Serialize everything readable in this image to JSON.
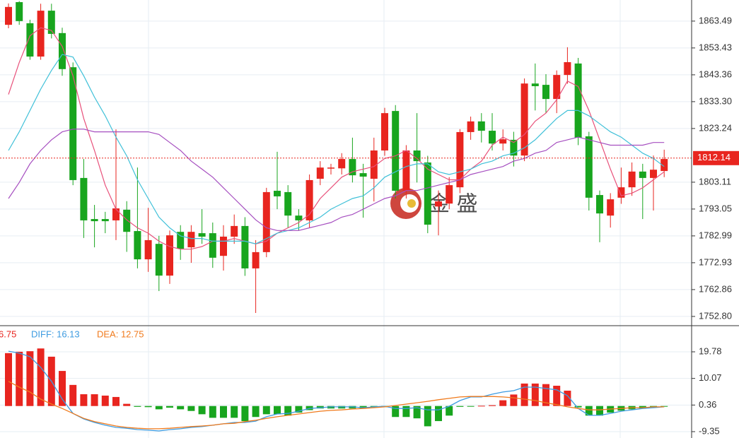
{
  "watermark": "金 盛",
  "chart_data": [
    {
      "type": "candlestick",
      "up_color": "#e8251f",
      "down_color": "#18a51e",
      "open": [
        1862.1,
        1870.6,
        1862.7,
        1850.2,
        1867.4,
        1859,
        1846.2,
        1804.7,
        1789.3,
        1789.3,
        1788.8,
        1792.8,
        1784.8,
        1774.2,
        1780,
        1768.1,
        1784.5,
        1778.7,
        1784,
        1784,
        1775.5,
        1782.7,
        1786.7,
        1770.8,
        1776.9,
        1799.9,
        1799.4,
        1790.6,
        1788.8,
        1804.4,
        1808.2,
        1808.3,
        1811.8,
        1806.5,
        1804.4,
        1815,
        1829.8,
        1799.9,
        1815,
        1810.5,
        1794,
        1795.1,
        1801.2,
        1821.9,
        1825.9,
        1822.4,
        1817.6,
        1819,
        1813.1,
        1840.1,
        1839.6,
        1834.3,
        1843.3,
        1847.6,
        1820.3,
        1798.3,
        1790.6,
        1797.3,
        1801.2,
        1807.1,
        1804.7,
        1807.3
      ],
      "high": [
        1870.1,
        1871,
        1864,
        1870,
        1870,
        1861,
        1848,
        1811.8,
        1794.6,
        1792,
        1822.9,
        1796,
        1808.6,
        1793.5,
        1783,
        1785,
        1787,
        1787,
        1793,
        1788,
        1787,
        1791,
        1790,
        1781.4,
        1801,
        1814.5,
        1802,
        1793,
        1806,
        1811,
        1810,
        1814,
        1819.8,
        1810,
        1819.8,
        1831,
        1832,
        1817,
        1829,
        1813,
        1800,
        1805,
        1823,
        1827.7,
        1829,
        1829,
        1822.9,
        1822,
        1842,
        1847.6,
        1843.6,
        1845,
        1853.7,
        1849.7,
        1822,
        1800,
        1799,
        1808.6,
        1810.5,
        1810,
        1813.1,
        1815.3
      ],
      "low": [
        1860.8,
        1862.1,
        1849,
        1849,
        1857,
        1843,
        1802,
        1782.2,
        1778.7,
        1784,
        1781.4,
        1777,
        1770.8,
        1769.5,
        1762.3,
        1765,
        1774,
        1772.9,
        1780,
        1771,
        1770,
        1780,
        1768,
        1754.1,
        1775,
        1793,
        1786,
        1785,
        1786,
        1802,
        1806,
        1806,
        1803,
        1789.8,
        1795.9,
        1813,
        1797,
        1797,
        1803,
        1784,
        1783.2,
        1793,
        1799,
        1819,
        1818,
        1815,
        1815,
        1809,
        1811,
        1830,
        1829,
        1829,
        1840,
        1817,
        1792.5,
        1780.6,
        1786.1,
        1795,
        1798,
        1789.3,
        1792.5,
        1805
      ],
      "close": [
        1868.8,
        1863.5,
        1850.2,
        1867.4,
        1858.7,
        1845.5,
        1803.9,
        1788.8,
        1788.5,
        1788.5,
        1793.3,
        1784.5,
        1774.2,
        1781.4,
        1768.1,
        1783.2,
        1778.2,
        1784.5,
        1782.7,
        1774.8,
        1782.7,
        1786.7,
        1770.8,
        1776.9,
        1799.4,
        1797.8,
        1790.6,
        1788.8,
        1803.9,
        1808.6,
        1808.6,
        1811.8,
        1805.7,
        1805.2,
        1815,
        1829,
        1799.9,
        1815,
        1811,
        1787.2,
        1795.9,
        1802,
        1821.9,
        1825.9,
        1822.4,
        1817.6,
        1819.2,
        1813.1,
        1840.1,
        1839.1,
        1834.3,
        1843.3,
        1848.1,
        1819.8,
        1797.3,
        1791.4,
        1796.7,
        1801.2,
        1807.1,
        1804.7,
        1807.8,
        1811.8
      ],
      "series": [
        {
          "color": "#e8507a",
          "values": [
            1836,
            1848,
            1858,
            1861,
            1860,
            1854,
            1843,
            1827,
            1815,
            1802,
            1793,
            1789,
            1786,
            1784,
            1781,
            1779,
            1778,
            1778,
            1779,
            1781,
            1781,
            1782,
            1781,
            1780,
            1781,
            1784,
            1786,
            1788,
            1791,
            1797,
            1801,
            1805,
            1807,
            1808,
            1809,
            1812,
            1813,
            1815,
            1812,
            1808,
            1806,
            1804,
            1804,
            1808,
            1811,
            1817,
            1820,
            1818,
            1821,
            1826,
            1829,
            1834,
            1841,
            1839,
            1830,
            1819,
            1808,
            1798,
            1799,
            1801,
            1804,
            1807
          ]
        },
        {
          "color": "#3fc0d8",
          "values": [
            1815,
            1822,
            1830,
            1838,
            1845,
            1851,
            1850,
            1843,
            1835,
            1828,
            1820,
            1813,
            1804,
            1797,
            1790,
            1786,
            1783,
            1782,
            1782,
            1781,
            1781,
            1781,
            1781,
            1780,
            1782,
            1784,
            1785,
            1786,
            1788,
            1790,
            1793,
            1795,
            1797,
            1798,
            1801,
            1805,
            1807,
            1809,
            1810,
            1810,
            1807,
            1806,
            1807,
            1808,
            1810,
            1811,
            1813,
            1814,
            1816,
            1819,
            1823,
            1827,
            1830,
            1830,
            1828,
            1825,
            1822,
            1820,
            1817,
            1814,
            1812,
            1809
          ]
        },
        {
          "color": "#a64fc0",
          "values": [
            1797,
            1803,
            1810,
            1815,
            1819,
            1822,
            1823,
            1823,
            1822,
            1822,
            1822,
            1822,
            1822,
            1822,
            1821,
            1818,
            1815,
            1811,
            1808,
            1805,
            1801,
            1797,
            1793,
            1789,
            1786,
            1785,
            1785,
            1785,
            1786,
            1787,
            1788,
            1790,
            1791,
            1793,
            1795,
            1797,
            1798,
            1800,
            1800,
            1801,
            1802,
            1803,
            1804,
            1806,
            1807,
            1808,
            1809,
            1811,
            1812,
            1814,
            1815,
            1818,
            1819,
            1820,
            1819,
            1818,
            1817,
            1817,
            1817,
            1817,
            1818,
            1818
          ]
        }
      ],
      "last_price": 1812.14,
      "ylim": [
        1749.6,
        1871.4
      ],
      "yticks": [
        1863.49,
        {
          "value": 1853.43,
          "label": "1853.43"
        },
        {
          "value": 1843.36,
          "label": "1843.36"
        },
        {
          "value": 1833.3,
          "label": "1833.30"
        },
        {
          "value": 1823.24,
          "label": "1823.24"
        },
        {
          "value": 1803.11,
          "label": "1803.11"
        },
        {
          "value": 1793.05,
          "label": "1793.05"
        },
        {
          "value": 1782.99,
          "label": "1782.99"
        },
        {
          "value": 1772.93,
          "label": "1772.93"
        },
        {
          "value": 1762.86,
          "label": "1762.86"
        },
        {
          "value": 1752.8,
          "label": "1752.80"
        }
      ],
      "grid": true
    },
    {
      "type": "macd",
      "up_color": "#e8251f",
      "down_color": "#18a51e",
      "series": [
        {
          "name": "6.75",
          "kind": "bar",
          "color": "#e8251f",
          "values": [
            19.3,
            19.8,
            20.0,
            21.0,
            18.0,
            12.8,
            7.7,
            4.3,
            4.3,
            3.8,
            3.3,
            0.8,
            -0.3,
            -0.4,
            -1.2,
            -0.6,
            -1.2,
            -1.8,
            -3.0,
            -4.3,
            -4.3,
            -4.3,
            -5.5,
            -4.0,
            -3.0,
            -3.0,
            -3.5,
            -2.4,
            -1.5,
            -0.9,
            -0.9,
            -0.9,
            -0.9,
            -0.9,
            -0.4,
            -0.4,
            -4.0,
            -4.0,
            -4.5,
            -7.4,
            -5.5,
            -3.5,
            -0.3,
            -0.1,
            0.1,
            0.3,
            2.1,
            4.2,
            8.2,
            8.2,
            8.0,
            7.4,
            5.6,
            -0.5,
            -3.5,
            -3.5,
            -2.4,
            -1.7,
            -1.2,
            -0.9,
            -0.4,
            -0.2
          ]
        },
        {
          "name": "DIFF: 16.13",
          "kind": "line",
          "color": "#3d9be0",
          "values": [
            20.0,
            19.3,
            18.0,
            14.1,
            9.0,
            2.5,
            -2.7,
            -4.7,
            -6.0,
            -7.0,
            -7.8,
            -8.1,
            -8.6,
            -8.8,
            -9.1,
            -8.6,
            -8.3,
            -7.8,
            -7.5,
            -7.0,
            -6.5,
            -6.0,
            -6.0,
            -5.5,
            -3.9,
            -2.9,
            -2.7,
            -1.9,
            -0.9,
            -0.6,
            -0.3,
            -0.3,
            -0.3,
            -0.6,
            -0.3,
            -0.1,
            -0.9,
            -0.9,
            -0.6,
            -1.4,
            -1.4,
            -0.1,
            2.0,
            3.3,
            3.3,
            4.3,
            5.1,
            5.6,
            6.9,
            6.9,
            6.4,
            5.9,
            3.8,
            -0.9,
            -3.4,
            -3.4,
            -2.7,
            -1.9,
            -1.4,
            -0.9,
            -0.6,
            -0.3
          ]
        },
        {
          "name": "DEA: 12.75",
          "kind": "line",
          "color": "#f07a1c",
          "values": [
            9.0,
            6.9,
            5.1,
            2.5,
            0.7,
            -0.9,
            -2.7,
            -4.5,
            -5.7,
            -6.5,
            -7.3,
            -7.8,
            -8.1,
            -8.3,
            -8.3,
            -8.1,
            -7.8,
            -7.5,
            -7.3,
            -7.0,
            -6.5,
            -6.3,
            -5.7,
            -5.2,
            -4.5,
            -3.9,
            -3.4,
            -2.9,
            -2.4,
            -1.9,
            -1.6,
            -1.4,
            -1.1,
            -0.9,
            -0.6,
            -0.3,
            0.2,
            0.7,
            1.2,
            1.7,
            2.3,
            2.8,
            3.3,
            3.5,
            3.5,
            3.5,
            3.3,
            3.0,
            2.5,
            2.0,
            1.2,
            0.5,
            -0.3,
            -0.9,
            -1.4,
            -1.4,
            -1.1,
            -0.9,
            -0.6,
            -0.6,
            -0.3,
            -0.3
          ]
        }
      ],
      "ylim": [
        -11.67,
        29.06
      ],
      "yticks": [
        19.78,
        10.07,
        0.36,
        -9.35
      ],
      "grid": true
    }
  ]
}
